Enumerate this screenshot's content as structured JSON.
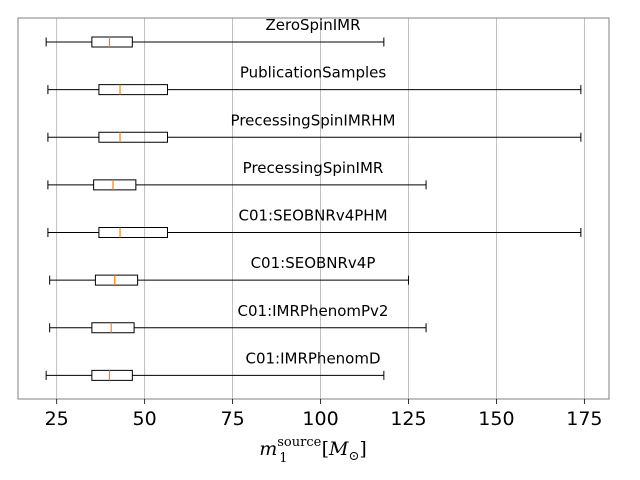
{
  "chart_data": {
    "type": "boxplot",
    "orientation": "horizontal",
    "xlabel": {
      "base": "m",
      "sub": "1",
      "sup": "source",
      "unit_open": "[",
      "unit": "M",
      "unit_sub": "⊙",
      "unit_close": "]"
    },
    "xlim": [
      14,
      182
    ],
    "xticks": [
      25,
      50,
      75,
      100,
      125,
      150,
      175
    ],
    "grid": "vertical",
    "colors": {
      "box": "#000000",
      "median": "#ff7f0e",
      "grid": "#b0b0b0",
      "frame": "#808080"
    },
    "series": [
      {
        "name": "ZeroSpinIMR",
        "whisker_low": 22.0,
        "q1": 35.0,
        "median": 40.0,
        "q3": 46.5,
        "whisker_high": 118.0
      },
      {
        "name": "PublicationSamples",
        "whisker_low": 22.5,
        "q1": 37.0,
        "median": 43.0,
        "q3": 56.5,
        "whisker_high": 174.0
      },
      {
        "name": "PrecessingSpinIMRHM",
        "whisker_low": 22.5,
        "q1": 37.0,
        "median": 43.0,
        "q3": 56.5,
        "whisker_high": 174.0
      },
      {
        "name": "PrecessingSpinIMR",
        "whisker_low": 22.5,
        "q1": 35.5,
        "median": 41.0,
        "q3": 47.5,
        "whisker_high": 130.0
      },
      {
        "name": "C01:SEOBNRv4PHM",
        "whisker_low": 22.5,
        "q1": 37.0,
        "median": 43.0,
        "q3": 56.5,
        "whisker_high": 174.0
      },
      {
        "name": "C01:SEOBNRv4P",
        "whisker_low": 23.0,
        "q1": 36.0,
        "median": 41.5,
        "q3": 48.0,
        "whisker_high": 125.0
      },
      {
        "name": "C01:IMRPhenomPv2",
        "whisker_low": 23.0,
        "q1": 35.0,
        "median": 40.5,
        "q3": 47.0,
        "whisker_high": 130.0
      },
      {
        "name": "C01:IMRPhenomD",
        "whisker_low": 22.0,
        "q1": 35.0,
        "median": 40.0,
        "q3": 46.5,
        "whisker_high": 118.0
      }
    ]
  }
}
